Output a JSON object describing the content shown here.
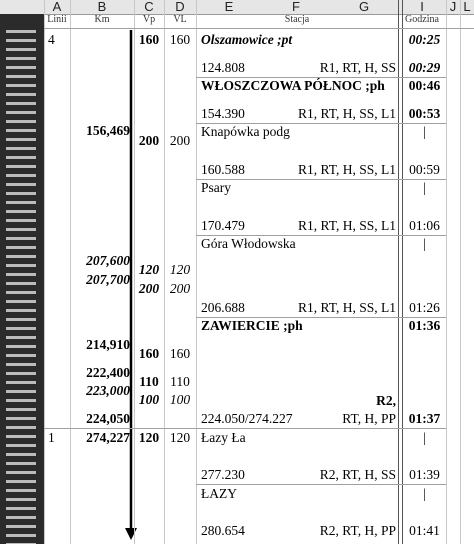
{
  "column_headers": [
    "A",
    "B",
    "C",
    "D",
    "E",
    "F",
    "G",
    "I",
    "J",
    "L"
  ],
  "sub_headers": {
    "line": "Linii",
    "km": "Km",
    "vp": "Vp",
    "vl": "VL",
    "station": "Stacja",
    "time": "Godzina"
  },
  "line_numbers": [
    "4",
    "1"
  ],
  "km": [
    "156,469",
    "207,600",
    "207,700",
    "214,910",
    "222,400",
    "223,000",
    "224,050",
    "274,227"
  ],
  "vp": [
    160,
    200,
    120,
    200,
    160,
    110,
    100,
    120
  ],
  "vl": [
    160,
    200,
    120,
    200,
    160,
    110,
    100,
    120
  ],
  "stations": [
    {
      "name": "Olszamowice ;pt",
      "km": "124.808",
      "codes": [
        "R1, RT, H, SS"
      ],
      "time_in": "00:25",
      "time_out": "00:29"
    },
    {
      "name": "WŁOSZCZOWA PÓŁNOC ;ph",
      "km": "154.390",
      "codes": [
        "R1, RT, H, SS, L1"
      ],
      "time_in": "00:46",
      "time_out": "00:53"
    },
    {
      "name": "Knapówka podg",
      "km": "160.588",
      "codes": [
        "R1, RT, H, SS, L1"
      ],
      "time_in": "|",
      "time_out": "00:59"
    },
    {
      "name": "Psary",
      "km": "170.479",
      "codes": [
        "R1, RT, H, SS, L1"
      ],
      "time_in": "|",
      "time_out": "01:06"
    },
    {
      "name": "Góra Włodowska",
      "km": "206.688",
      "codes": [
        "R1, RT, H, SS, L1"
      ],
      "time_in": "|",
      "time_out": "01:26"
    },
    {
      "name": "ZAWIERCIE ;ph",
      "km": "224.050/274.227",
      "codes": [
        "R2,",
        "RT, H, PP"
      ],
      "time_in": "01:36",
      "time_out": "01:37"
    },
    {
      "name": "Łazy Ła",
      "km": "277.230",
      "codes": [
        "R2, RT, H, SS"
      ],
      "time_in": "|",
      "time_out": "01:39"
    },
    {
      "name": "ŁAZY",
      "km": "280.654",
      "codes": [
        "R2, RT, H, PP"
      ],
      "time_in": "|",
      "time_out": "01:41"
    }
  ]
}
